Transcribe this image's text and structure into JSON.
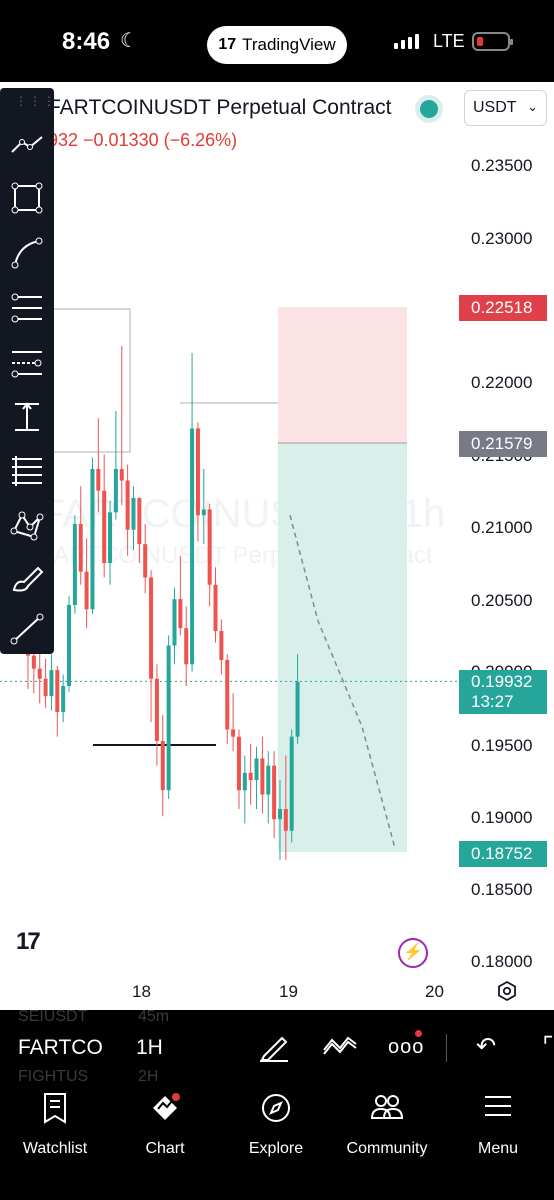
{
  "status_bar": {
    "time": "8:46",
    "app_pill": "TradingView",
    "network": "LTE"
  },
  "header": {
    "symbol_title": "FARTCOINUSDT Perpetual Contract",
    "currency_select": "USDT",
    "price_change": "932  −0.01330 (−6.26%)"
  },
  "watermark": {
    "symbol": "FARTCOINUSDT.P, 1h",
    "description": "FARTCOINUSDT Perpetual Contract"
  },
  "price_axis": {
    "labels": [
      "0.23500",
      "0.23000",
      "0.22000",
      "0.21500",
      "0.21000",
      "0.20500",
      "0.20000",
      "0.19500",
      "0.19000",
      "0.18500",
      "0.18000"
    ],
    "stop_loss_tag": "0.22518",
    "entry_tag": "0.21579",
    "current_price": "0.19932",
    "countdown": "13:27",
    "target_tag": "0.18752"
  },
  "time_axis": {
    "labels": [
      "18",
      "19",
      "20"
    ]
  },
  "colors": {
    "up": "#26a69a",
    "down": "#ef5350",
    "stop_zone": "#fbe3e5",
    "target_zone": "#d8efea"
  },
  "toolbox": {
    "tools": [
      "trend-line-tool",
      "rectangle-tool",
      "curve-tool",
      "fib-retracement-tool",
      "fib-extension-tool",
      "measure-tool",
      "parallel-lines-tool",
      "pattern-tool",
      "brush-tool",
      "line-tool"
    ]
  },
  "bottom_toolbar": {
    "symbol": "FARTCO",
    "timeframe": "1H",
    "ghost_symbol_above": "SEIUSDT",
    "ghost_tf_above": "45m",
    "ghost_symbol_below": "FIGHTUS",
    "ghost_tf_below": "2H"
  },
  "nav": {
    "items": [
      {
        "label": "Watchlist",
        "icon": "watchlist-icon"
      },
      {
        "label": "Chart",
        "icon": "chart-icon"
      },
      {
        "label": "Explore",
        "icon": "compass-icon"
      },
      {
        "label": "Community",
        "icon": "community-icon"
      },
      {
        "label": "Menu",
        "icon": "menu-icon"
      }
    ]
  },
  "chart_data": {
    "type": "candlestick",
    "title": "FARTCOINUSDT Perpetual Contract",
    "ylim": [
      0.18,
      0.235
    ],
    "x_ticks": [
      "18",
      "19",
      "20"
    ],
    "position": {
      "kind": "short",
      "entry": 0.21579,
      "stop": 0.22518,
      "target": 0.18752
    },
    "last_price": 0.19932,
    "candles": [
      [
        0.2025,
        0.2036,
        0.1988,
        0.2011
      ],
      [
        0.2011,
        0.2023,
        0.1985,
        0.2002
      ],
      [
        0.2002,
        0.2012,
        0.1978,
        0.1995
      ],
      [
        0.1995,
        0.2009,
        0.1975,
        0.1983
      ],
      [
        0.1983,
        0.2012,
        0.1973,
        0.2001
      ],
      [
        0.2001,
        0.2004,
        0.1955,
        0.1972
      ],
      [
        0.1972,
        0.1998,
        0.1965,
        0.199
      ],
      [
        0.199,
        0.2052,
        0.1986,
        0.2046
      ],
      [
        0.2046,
        0.2108,
        0.204,
        0.2102
      ],
      [
        0.2102,
        0.2128,
        0.206,
        0.2069
      ],
      [
        0.2069,
        0.2092,
        0.203,
        0.2043
      ],
      [
        0.2043,
        0.2148,
        0.204,
        0.214
      ],
      [
        0.214,
        0.2175,
        0.211,
        0.2125
      ],
      [
        0.2125,
        0.215,
        0.2065,
        0.2075
      ],
      [
        0.2075,
        0.2118,
        0.206,
        0.211
      ],
      [
        0.211,
        0.218,
        0.2105,
        0.214
      ],
      [
        0.214,
        0.2225,
        0.2115,
        0.2132
      ],
      [
        0.2132,
        0.2143,
        0.208,
        0.2098
      ],
      [
        0.2098,
        0.2128,
        0.2084,
        0.212
      ],
      [
        0.212,
        0.2118,
        0.2075,
        0.2088
      ],
      [
        0.2088,
        0.2102,
        0.2054,
        0.2065
      ],
      [
        0.2065,
        0.207,
        0.1965,
        0.1995
      ],
      [
        0.1995,
        0.2005,
        0.1935,
        0.1952
      ],
      [
        0.1952,
        0.197,
        0.19,
        0.1918
      ],
      [
        0.1918,
        0.2025,
        0.1912,
        0.2018
      ],
      [
        0.2018,
        0.2058,
        0.2005,
        0.205
      ],
      [
        0.205,
        0.208,
        0.2025,
        0.203
      ],
      [
        0.203,
        0.2045,
        0.199,
        0.2005
      ],
      [
        0.2005,
        0.222,
        0.2,
        0.2168
      ],
      [
        0.2168,
        0.2172,
        0.209,
        0.2108
      ],
      [
        0.2108,
        0.214,
        0.2088,
        0.2112
      ],
      [
        0.2112,
        0.2116,
        0.2045,
        0.206
      ],
      [
        0.206,
        0.2072,
        0.202,
        0.2028
      ],
      [
        0.2028,
        0.2036,
        0.1998,
        0.2008
      ],
      [
        0.2008,
        0.2012,
        0.195,
        0.196
      ],
      [
        0.196,
        0.1985,
        0.1945,
        0.1955
      ],
      [
        0.1955,
        0.196,
        0.1905,
        0.1918
      ],
      [
        0.1918,
        0.1942,
        0.1895,
        0.193
      ],
      [
        0.193,
        0.195,
        0.1908,
        0.1925
      ],
      [
        0.1925,
        0.1948,
        0.1905,
        0.194
      ],
      [
        0.194,
        0.1955,
        0.1902,
        0.1915
      ],
      [
        0.1915,
        0.1945,
        0.1895,
        0.1935
      ],
      [
        0.1935,
        0.1945,
        0.1885,
        0.1898
      ],
      [
        0.1898,
        0.1925,
        0.187,
        0.1905
      ],
      [
        0.1905,
        0.1942,
        0.187,
        0.189
      ],
      [
        0.189,
        0.196,
        0.1882,
        0.1955
      ],
      [
        0.1955,
        0.2012,
        0.195,
        0.1993
      ]
    ]
  }
}
